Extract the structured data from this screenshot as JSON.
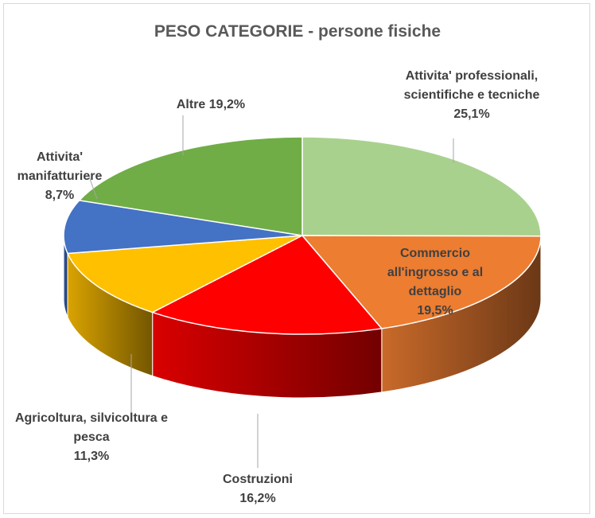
{
  "chart_data": {
    "type": "pie",
    "title": "PESO CATEGORIE - persone fisiche",
    "categories": [
      "Attivita' professionali, scientifiche e tecniche",
      "Commercio all'ingrosso e al dettaglio",
      "Costruzioni",
      "Agricoltura, silvicoltura e pesca",
      "Attivita' manifatturiere",
      "Altre"
    ],
    "values": [
      25.1,
      19.5,
      16.2,
      11.3,
      8.7,
      19.2
    ],
    "value_labels": [
      "25,1%",
      "19,5%",
      "16,2%",
      "11,3%",
      "8,7%",
      "19,2%"
    ],
    "colors": [
      "#a9d18e",
      "#ed7d31",
      "#ff0000",
      "#ffc000",
      "#4472c4",
      "#70ad47"
    ]
  }
}
